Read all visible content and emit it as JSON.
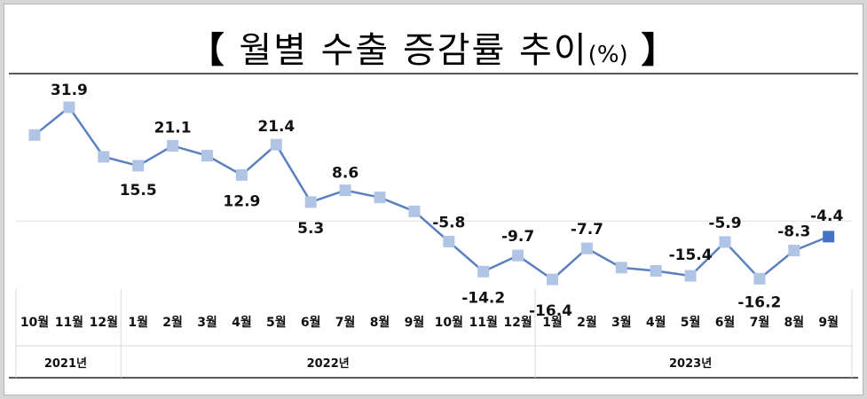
{
  "title": {
    "open": "【",
    "text": "월별 수출 증감률 추이",
    "unit": "(%)",
    "close": "】"
  },
  "chart_data": {
    "type": "line",
    "title": "월별 수출 증감률 추이(%)",
    "unit": "%",
    "categories": [
      "10월",
      "11월",
      "12월",
      "1월",
      "2월",
      "3월",
      "4월",
      "5월",
      "6월",
      "7월",
      "8월",
      "9월",
      "10월",
      "11월",
      "12월",
      "1월",
      "2월",
      "3월",
      "4월",
      "5월",
      "6월",
      "7월",
      "8월",
      "9월"
    ],
    "year_groups": [
      {
        "label": "2021년",
        "start": 0,
        "end": 2
      },
      {
        "label": "2022년",
        "start": 3,
        "end": 14
      },
      {
        "label": "2023년",
        "start": 15,
        "end": 23
      }
    ],
    "values": [
      24.1,
      31.9,
      18.0,
      15.5,
      21.1,
      18.3,
      12.9,
      21.4,
      5.3,
      8.6,
      6.6,
      2.7,
      -5.8,
      -14.2,
      -9.7,
      -16.4,
      -7.7,
      -13.1,
      -14.0,
      -15.4,
      -5.9,
      -16.2,
      -8.3,
      -4.4
    ],
    "labels": [
      "",
      "31.9",
      "",
      "15.5",
      "21.1",
      "",
      "12.9",
      "21.4",
      "5.3",
      "8.6",
      "",
      "",
      "-5.8",
      "-14.2",
      "-9.7",
      "-16.4",
      "-7.7",
      "",
      "",
      "-15.4",
      "-5.9",
      "-16.2",
      "-8.3",
      "-4.4"
    ],
    "line_color": "#5b80bf",
    "marker_color": "#b0c4e6",
    "highlight_color": "#4472c4",
    "grid": false
  }
}
